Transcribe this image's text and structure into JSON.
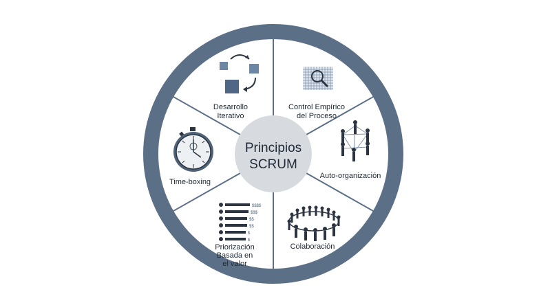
{
  "center": {
    "line1": "Principios",
    "line2": "SCRUM"
  },
  "segments": [
    {
      "id": "desarrollo",
      "icon": "iterative-development-icon",
      "lines": [
        "Desarrollo",
        "Iterativo"
      ]
    },
    {
      "id": "control",
      "icon": "empirical-grid-magnifier-icon",
      "lines": [
        "Control Empírico",
        "del Proceso"
      ]
    },
    {
      "id": "auto",
      "icon": "self-organization-network-icon",
      "lines": [
        "Auto-organización"
      ]
    },
    {
      "id": "colaboracion",
      "icon": "people-circle-icon",
      "lines": [
        "Colaboración"
      ]
    },
    {
      "id": "priorizacion",
      "icon": "value-priority-list-icon",
      "lines": [
        "Priorización",
        "Basada en",
        "el valor"
      ],
      "list_values": [
        "$$$$",
        "$$$",
        "$$",
        "$$",
        "$",
        "$"
      ]
    },
    {
      "id": "timeboxing",
      "icon": "stopwatch-icon",
      "lines": [
        "Time-boxing"
      ]
    }
  ],
  "colors": {
    "ring": "#5b6f86",
    "center": "#d7dbe0",
    "divider": "#5b6f86",
    "inner_bg": "#ffffff",
    "icon": "#4e6278"
  }
}
